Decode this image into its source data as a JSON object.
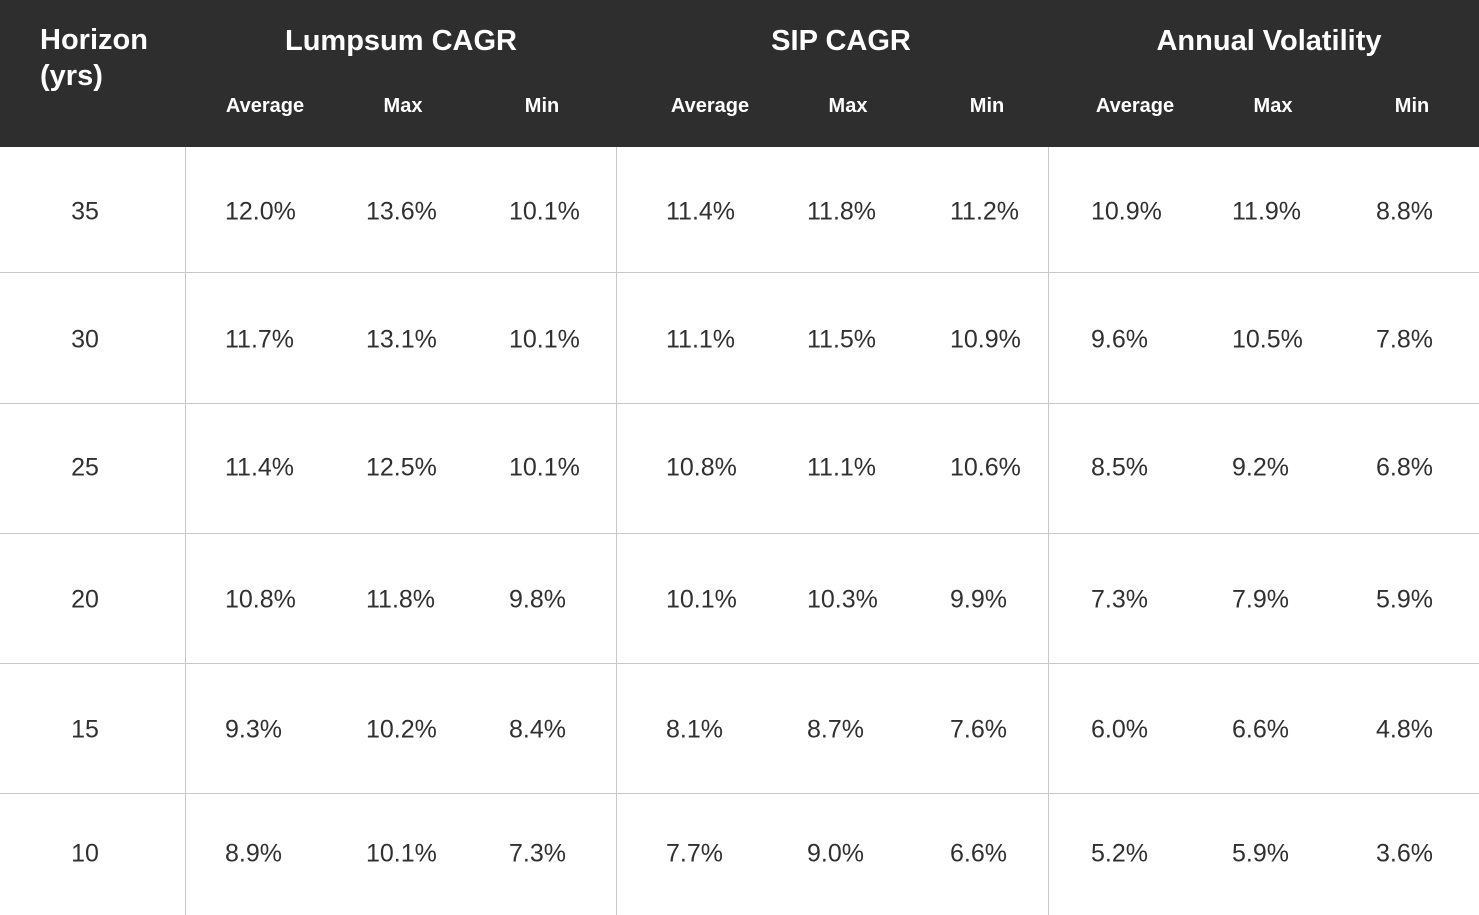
{
  "chart_data": {
    "type": "table",
    "header": {
      "horizon_label": "Horizon\n(yrs)",
      "groups": [
        "Lumpsum CAGR",
        "SIP CAGR",
        "Annual Volatility"
      ],
      "subheaders": [
        "Average",
        "Max",
        "Min",
        "Average",
        "Max",
        "Min",
        "Average",
        "Max",
        "Min"
      ]
    },
    "rows": [
      {
        "horizon": "35",
        "values": [
          "12.0%",
          "13.6%",
          "10.1%",
          "11.4%",
          "11.8%",
          "11.2%",
          "10.9%",
          "11.9%",
          "8.8%"
        ]
      },
      {
        "horizon": "30",
        "values": [
          "11.7%",
          "13.1%",
          "10.1%",
          "11.1%",
          "11.5%",
          "10.9%",
          "9.6%",
          "10.5%",
          "7.8%"
        ]
      },
      {
        "horizon": "25",
        "values": [
          "11.4%",
          "12.5%",
          "10.1%",
          "10.8%",
          "11.1%",
          "10.6%",
          "8.5%",
          "9.2%",
          "6.8%"
        ]
      },
      {
        "horizon": "20",
        "values": [
          "10.8%",
          "11.8%",
          "9.8%",
          "10.1%",
          "10.3%",
          "9.9%",
          "7.3%",
          "7.9%",
          "5.9%"
        ]
      },
      {
        "horizon": "15",
        "values": [
          "9.3%",
          "10.2%",
          "8.4%",
          "8.1%",
          "8.7%",
          "7.6%",
          "6.0%",
          "6.6%",
          "4.8%"
        ]
      },
      {
        "horizon": "10",
        "values": [
          "8.9%",
          "10.1%",
          "7.3%",
          "7.7%",
          "9.0%",
          "6.6%",
          "5.2%",
          "5.9%",
          "3.6%"
        ]
      }
    ],
    "colors": {
      "header_background": "#2e2e2e",
      "header_text": "#ffffff",
      "body_text": "#303030",
      "grid": "#c8c8c8"
    }
  }
}
